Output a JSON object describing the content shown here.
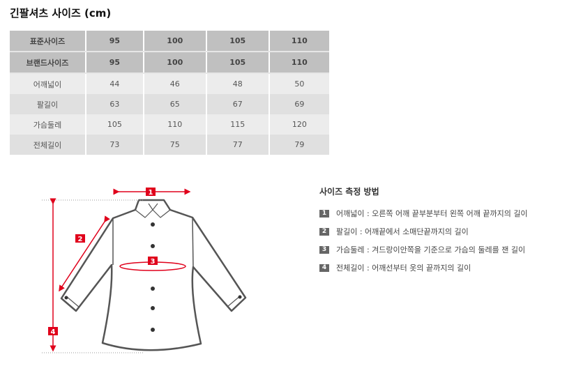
{
  "title": "긴팔셔츠 사이즈 (cm)",
  "table": {
    "header_rows": [
      [
        "표준사이즈",
        "95",
        "100",
        "105",
        "110"
      ],
      [
        "브랜드사이즈",
        "95",
        "100",
        "105",
        "110"
      ]
    ],
    "rows": [
      [
        "어깨넓이",
        "44",
        "46",
        "48",
        "50"
      ],
      [
        "팔길이",
        "63",
        "65",
        "67",
        "69"
      ],
      [
        "가슴둘레",
        "105",
        "110",
        "115",
        "120"
      ],
      [
        "전체길이",
        "73",
        "75",
        "77",
        "79"
      ]
    ]
  },
  "diagram": {
    "labels": [
      "1",
      "2",
      "3",
      "4"
    ],
    "accent": "#e0001b"
  },
  "method": {
    "title": "사이즈 측정 방법",
    "items": [
      {
        "num": "1",
        "text": "어깨넓이 : 오른쪽 어깨 끝부분부터 왼쪽 어깨 끝까지의 길이"
      },
      {
        "num": "2",
        "text": "팔길이 : 어깨끝에서 소매단끝까지의 길이"
      },
      {
        "num": "3",
        "text": "가슴둘레 : 겨드랑이안쪽을 기준으로 가슴의 둘레를 잰 길이"
      },
      {
        "num": "4",
        "text": "전체길이 : 어깨선부터 옷의 끝까지의 길이"
      }
    ]
  }
}
